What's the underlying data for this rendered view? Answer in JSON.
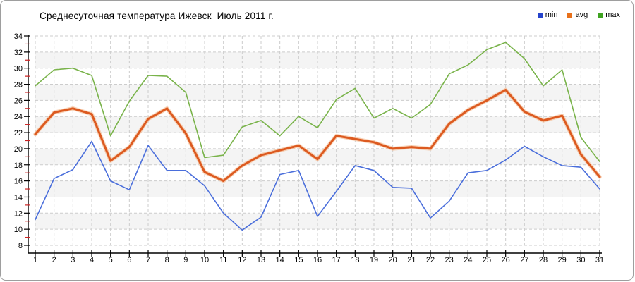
{
  "title": "Среднесуточная температура Ижевск  Июль 2011 г.",
  "legend": [
    {
      "label": "min",
      "color": "#2543cc"
    },
    {
      "label": "avg",
      "color": "#e8701a"
    },
    {
      "label": "max",
      "color": "#3fa321"
    }
  ],
  "colors": {
    "plot_band": "#f4f4f4",
    "gridline": "#cccccc",
    "axis": "#000000",
    "minor_tick": "#cc2222",
    "avg_halo": "#f5bd96"
  },
  "chart_data": {
    "type": "line",
    "title": "Среднесуточная температура Ижевск  Июль 2011 г.",
    "xlabel": "",
    "ylabel": "",
    "x": [
      1,
      2,
      3,
      4,
      5,
      6,
      7,
      8,
      9,
      10,
      11,
      12,
      13,
      14,
      15,
      16,
      17,
      18,
      19,
      20,
      21,
      22,
      23,
      24,
      25,
      26,
      27,
      28,
      29,
      30,
      31
    ],
    "ylim": [
      8,
      34
    ],
    "ytick_step": 2,
    "grid": true,
    "legend_position": "top-right",
    "series": [
      {
        "name": "min",
        "color": "#4a6edb",
        "values": [
          11.2,
          16.3,
          17.4,
          20.9,
          16.0,
          14.9,
          20.4,
          17.3,
          17.3,
          15.4,
          12.0,
          9.9,
          11.5,
          16.8,
          17.3,
          11.6,
          14.7,
          17.9,
          17.3,
          15.2,
          15.1,
          11.4,
          13.5,
          17.0,
          17.3,
          18.6,
          20.3,
          19.0,
          17.9,
          17.7,
          15.0
        ]
      },
      {
        "name": "avg",
        "color": "#dc5a20",
        "values": [
          21.8,
          24.5,
          25.0,
          24.3,
          18.5,
          20.2,
          23.7,
          25.0,
          21.9,
          17.1,
          16.0,
          17.9,
          19.2,
          19.8,
          20.4,
          18.7,
          21.6,
          21.2,
          20.8,
          20.0,
          20.2,
          20.0,
          23.1,
          24.8,
          26.0,
          27.3,
          24.6,
          23.5,
          24.1,
          19.3,
          16.5
        ]
      },
      {
        "name": "max",
        "color": "#79b34a",
        "values": [
          27.8,
          29.8,
          30.0,
          29.1,
          21.6,
          25.9,
          29.1,
          29.0,
          27.0,
          18.9,
          19.2,
          22.7,
          23.5,
          21.6,
          24.0,
          22.6,
          26.1,
          27.5,
          23.8,
          25.0,
          23.8,
          25.5,
          29.3,
          30.4,
          32.3,
          33.2,
          31.2,
          27.8,
          29.8,
          21.4,
          18.4
        ]
      }
    ]
  }
}
